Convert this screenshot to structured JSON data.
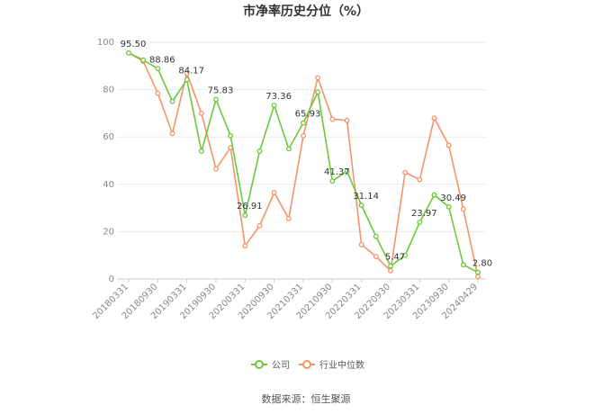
{
  "title": "市净率历史分位（%）",
  "source": "数据来源：恒生聚源",
  "colors": {
    "company": "#6cc83a",
    "industry": "#f4936b",
    "grid": "#ebebeb",
    "axis": "#cccccc"
  },
  "chart_data": {
    "type": "line",
    "ylim": [
      0,
      100
    ],
    "yticks": [
      0,
      20,
      40,
      60,
      80,
      100
    ],
    "xticks": [
      "20180331",
      "20180930",
      "20190331",
      "20190930",
      "20200331",
      "20200930",
      "20210331",
      "20210930",
      "20220331",
      "20220930",
      "20230331",
      "20230930",
      "20240429"
    ],
    "grid": "horizontal",
    "legend_position": "bottom",
    "series": [
      {
        "name": "公司",
        "values": [
          95.5,
          92.5,
          88.86,
          75.0,
          84.17,
          54.0,
          75.83,
          60.5,
          26.91,
          54.0,
          73.36,
          55.0,
          65.93,
          79.0,
          41.37,
          45.5,
          31.14,
          18.0,
          5.47,
          10.0,
          23.97,
          35.5,
          30.49,
          6.0,
          2.8
        ]
      },
      {
        "name": "行业中位数",
        "values": [
          95.5,
          92.0,
          78.5,
          61.5,
          87.0,
          70.0,
          46.5,
          55.5,
          14.0,
          22.5,
          36.5,
          25.5,
          60.5,
          85.0,
          67.5,
          67.0,
          14.5,
          9.5,
          3.5,
          45.0,
          42.0,
          68.0,
          56.5,
          29.5,
          1.0
        ]
      }
    ],
    "annotations": [
      {
        "index": 0,
        "text": "95.50"
      },
      {
        "index": 2,
        "text": "88.86"
      },
      {
        "index": 4,
        "text": "84.17"
      },
      {
        "index": 6,
        "text": "75.83"
      },
      {
        "index": 8,
        "text": "26.91"
      },
      {
        "index": 10,
        "text": "73.36"
      },
      {
        "index": 12,
        "text": "65.93"
      },
      {
        "index": 14,
        "text": "41.37"
      },
      {
        "index": 16,
        "text": "31.14"
      },
      {
        "index": 18,
        "text": "5.47"
      },
      {
        "index": 20,
        "text": "23.97"
      },
      {
        "index": 22,
        "text": "30.49"
      },
      {
        "index": 24,
        "text": "2.80"
      }
    ]
  }
}
